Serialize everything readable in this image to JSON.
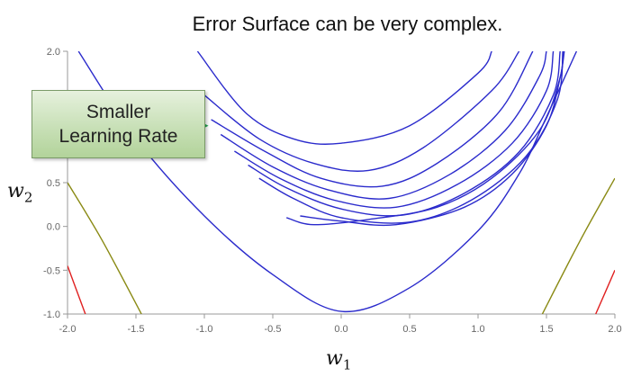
{
  "title": "Error Surface can be very complex.",
  "callout": {
    "line1": "Smaller",
    "line2": "Learning Rate"
  },
  "colors": {
    "contour": "#2b2bcc",
    "olive_curve": "#8a8a14",
    "red_curve": "#e02020",
    "arrow": "#1fa84f",
    "axis": "#999999"
  },
  "chart_data": {
    "type": "contour",
    "title": "Error Surface can be very complex.",
    "xlabel": {
      "var": "w",
      "sub": "1"
    },
    "ylabel": {
      "var": "w",
      "sub": "2"
    },
    "xlim": [
      -2.0,
      2.0
    ],
    "ylim": [
      -1.0,
      2.0
    ],
    "xticks": [
      "-2.0",
      "-1.5",
      "-1.0",
      "-0.5",
      "0.0",
      "0.5",
      "1.0",
      "1.5",
      "2.0"
    ],
    "yticks": [
      "-1.0",
      "-0.5",
      "0.0",
      "0.5",
      "1.0",
      "1.5",
      "2.0"
    ],
    "grid": false,
    "contour_levels": [
      {
        "left": [
          [
            -1.92,
            2.0
          ],
          [
            -1.5,
            1.0
          ],
          [
            -1.0,
            0.12
          ],
          [
            -0.5,
            -0.55
          ],
          [
            0.0,
            -0.97
          ]
        ],
        "right": [
          [
            0.0,
            -0.97
          ],
          [
            0.5,
            -0.7
          ],
          [
            1.0,
            -0.05
          ],
          [
            1.3,
            0.6
          ],
          [
            1.5,
            1.25
          ],
          [
            1.72,
            2.0
          ]
        ]
      },
      {
        "left": [
          [
            -1.05,
            2.0
          ],
          [
            -0.7,
            1.3
          ],
          [
            -0.35,
            1.0
          ],
          [
            0.0,
            0.95
          ]
        ],
        "right": [
          [
            0.0,
            0.95
          ],
          [
            0.5,
            1.15
          ],
          [
            1.0,
            1.75
          ],
          [
            1.1,
            2.0
          ]
        ]
      },
      {
        "left": [
          [
            -1.0,
            1.5
          ],
          [
            -0.6,
            1.0
          ],
          [
            -0.2,
            0.72
          ],
          [
            0.2,
            0.64
          ]
        ],
        "right": [
          [
            0.2,
            0.64
          ],
          [
            0.6,
            0.9
          ],
          [
            1.1,
            1.55
          ],
          [
            1.3,
            2.0
          ]
        ]
      },
      {
        "left": [
          [
            -0.95,
            1.22
          ],
          [
            -0.55,
            0.85
          ],
          [
            -0.15,
            0.55
          ],
          [
            0.3,
            0.46
          ]
        ],
        "right": [
          [
            0.3,
            0.46
          ],
          [
            0.7,
            0.72
          ],
          [
            1.15,
            1.3
          ],
          [
            1.4,
            2.0
          ]
        ]
      },
      {
        "left": [
          [
            -0.88,
            1.05
          ],
          [
            -0.5,
            0.68
          ],
          [
            -0.1,
            0.42
          ],
          [
            0.35,
            0.32
          ]
        ],
        "right": [
          [
            0.35,
            0.32
          ],
          [
            0.8,
            0.6
          ],
          [
            1.2,
            1.1
          ],
          [
            1.45,
            1.72
          ],
          [
            1.5,
            2.0
          ]
        ]
      },
      {
        "left": [
          [
            -0.78,
            0.86
          ],
          [
            -0.45,
            0.55
          ],
          [
            -0.05,
            0.3
          ],
          [
            0.4,
            0.22
          ]
        ],
        "right": [
          [
            0.4,
            0.22
          ],
          [
            0.85,
            0.48
          ],
          [
            1.25,
            0.95
          ],
          [
            1.5,
            1.55
          ],
          [
            1.55,
            2.0
          ]
        ]
      },
      {
        "left": [
          [
            -0.68,
            0.7
          ],
          [
            -0.4,
            0.44
          ],
          [
            0.0,
            0.2
          ],
          [
            0.45,
            0.13
          ]
        ],
        "right": [
          [
            0.45,
            0.13
          ],
          [
            0.9,
            0.38
          ],
          [
            1.3,
            0.85
          ],
          [
            1.55,
            1.5
          ],
          [
            1.6,
            2.0
          ]
        ]
      },
      {
        "left": [
          [
            -0.6,
            0.55
          ],
          [
            -0.35,
            0.32
          ],
          [
            0.0,
            0.1
          ],
          [
            0.5,
            0.05
          ]
        ],
        "right": [
          [
            0.5,
            0.05
          ],
          [
            0.95,
            0.3
          ],
          [
            1.35,
            0.8
          ],
          [
            1.58,
            1.45
          ],
          [
            1.62,
            2.0
          ]
        ]
      },
      {
        "left": [
          [
            -0.4,
            0.1
          ],
          [
            -0.2,
            0.02
          ],
          [
            0.2,
            0.08
          ]
        ],
        "right": [
          [
            0.2,
            0.08
          ],
          [
            0.7,
            0.22
          ],
          [
            1.1,
            0.55
          ],
          [
            1.45,
            1.1
          ],
          [
            1.6,
            1.7
          ],
          [
            1.62,
            2.0
          ]
        ]
      },
      {
        "left": [
          [
            -0.3,
            0.12
          ],
          [
            0.0,
            0.06
          ],
          [
            0.4,
            0.02
          ]
        ],
        "right": [
          [
            0.4,
            0.02
          ],
          [
            0.9,
            0.22
          ],
          [
            1.25,
            0.6
          ],
          [
            1.5,
            1.15
          ],
          [
            1.6,
            1.7
          ],
          [
            1.63,
            2.0
          ]
        ]
      }
    ],
    "side_curves": [
      {
        "color": "olive",
        "points": [
          [
            -2.0,
            0.5
          ],
          [
            -1.75,
            -0.15
          ],
          [
            -1.46,
            -1.0
          ]
        ]
      },
      {
        "color": "red",
        "points": [
          [
            -2.0,
            -0.45
          ],
          [
            -1.87,
            -1.0
          ]
        ]
      },
      {
        "color": "olive",
        "points": [
          [
            1.47,
            -1.0
          ],
          [
            1.75,
            -0.15
          ],
          [
            2.0,
            0.55
          ]
        ]
      },
      {
        "color": "red",
        "points": [
          [
            1.86,
            -1.0
          ],
          [
            2.0,
            -0.5
          ]
        ]
      }
    ],
    "annotations": [
      {
        "type": "arrow",
        "from": [
          -2.25,
          1.15
        ],
        "to": [
          -0.97,
          1.15
        ]
      }
    ]
  }
}
